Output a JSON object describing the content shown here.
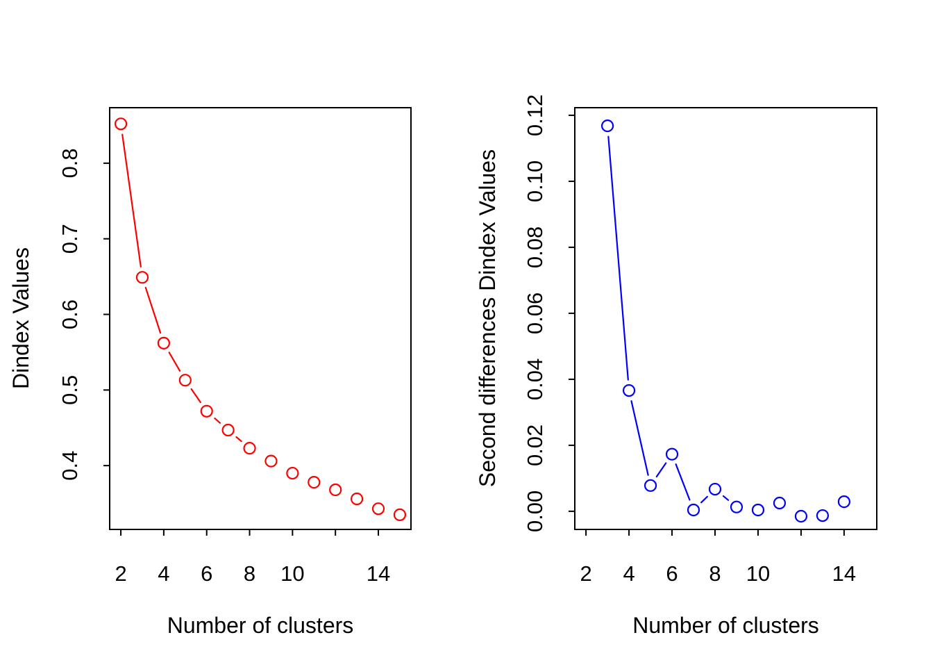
{
  "figure": {
    "background": "#ffffff",
    "title": ""
  },
  "chart_data": [
    {
      "type": "line",
      "panel": "left",
      "title": "",
      "xlabel": "Number of clusters",
      "ylabel": "Dindex Values",
      "color": "#ff0000",
      "marker": "open-circle",
      "line_style": "solid-broken-at-points",
      "grid": false,
      "legend": null,
      "x": [
        2,
        3,
        4,
        5,
        6,
        7,
        8,
        9,
        10,
        11,
        12,
        13,
        14,
        15
      ],
      "y": [
        0.852,
        0.649,
        0.562,
        0.513,
        0.472,
        0.447,
        0.423,
        0.406,
        0.39,
        0.378,
        0.368,
        0.356,
        0.343,
        0.335
      ],
      "x_ticks": [
        2,
        4,
        6,
        8,
        10,
        12,
        14
      ],
      "x_tick_labels": [
        "2",
        "4",
        "6",
        "8",
        "10",
        "",
        "14"
      ],
      "y_ticks": [
        0.4,
        0.5,
        0.6,
        0.7,
        0.8
      ],
      "y_tick_labels": [
        "0.4",
        "0.5",
        "0.6",
        "0.7",
        "0.8"
      ],
      "xlim": [
        1.48,
        15.52
      ],
      "ylim": [
        0.3156,
        0.8734
      ]
    },
    {
      "type": "line",
      "panel": "right",
      "title": "",
      "xlabel": "Number of clusters",
      "ylabel": "Second differences Dindex Values",
      "color": "#0000ff",
      "marker": "open-circle",
      "line_style": "solid-broken-at-points",
      "grid": false,
      "legend": null,
      "x": [
        3,
        4,
        5,
        6,
        7,
        8,
        9,
        10,
        11,
        12,
        13,
        14
      ],
      "y": [
        0.1168,
        0.0366,
        0.0078,
        0.0173,
        0.0004,
        0.0067,
        0.0013,
        0.0004,
        0.0025,
        -0.0015,
        -0.0013,
        0.0029
      ],
      "x_ticks": [
        2,
        4,
        6,
        8,
        10,
        12,
        14
      ],
      "x_tick_labels": [
        "2",
        "4",
        "6",
        "8",
        "10",
        "",
        "14"
      ],
      "y_ticks": [
        0.0,
        0.02,
        0.04,
        0.06,
        0.08,
        0.1,
        0.12
      ],
      "y_tick_labels": [
        "0.00",
        "0.02",
        "0.04",
        "0.06",
        "0.08",
        "0.10",
        "0.12"
      ],
      "xlim": [
        1.48,
        15.52
      ],
      "ylim": [
        -0.0055,
        0.1223
      ]
    }
  ]
}
